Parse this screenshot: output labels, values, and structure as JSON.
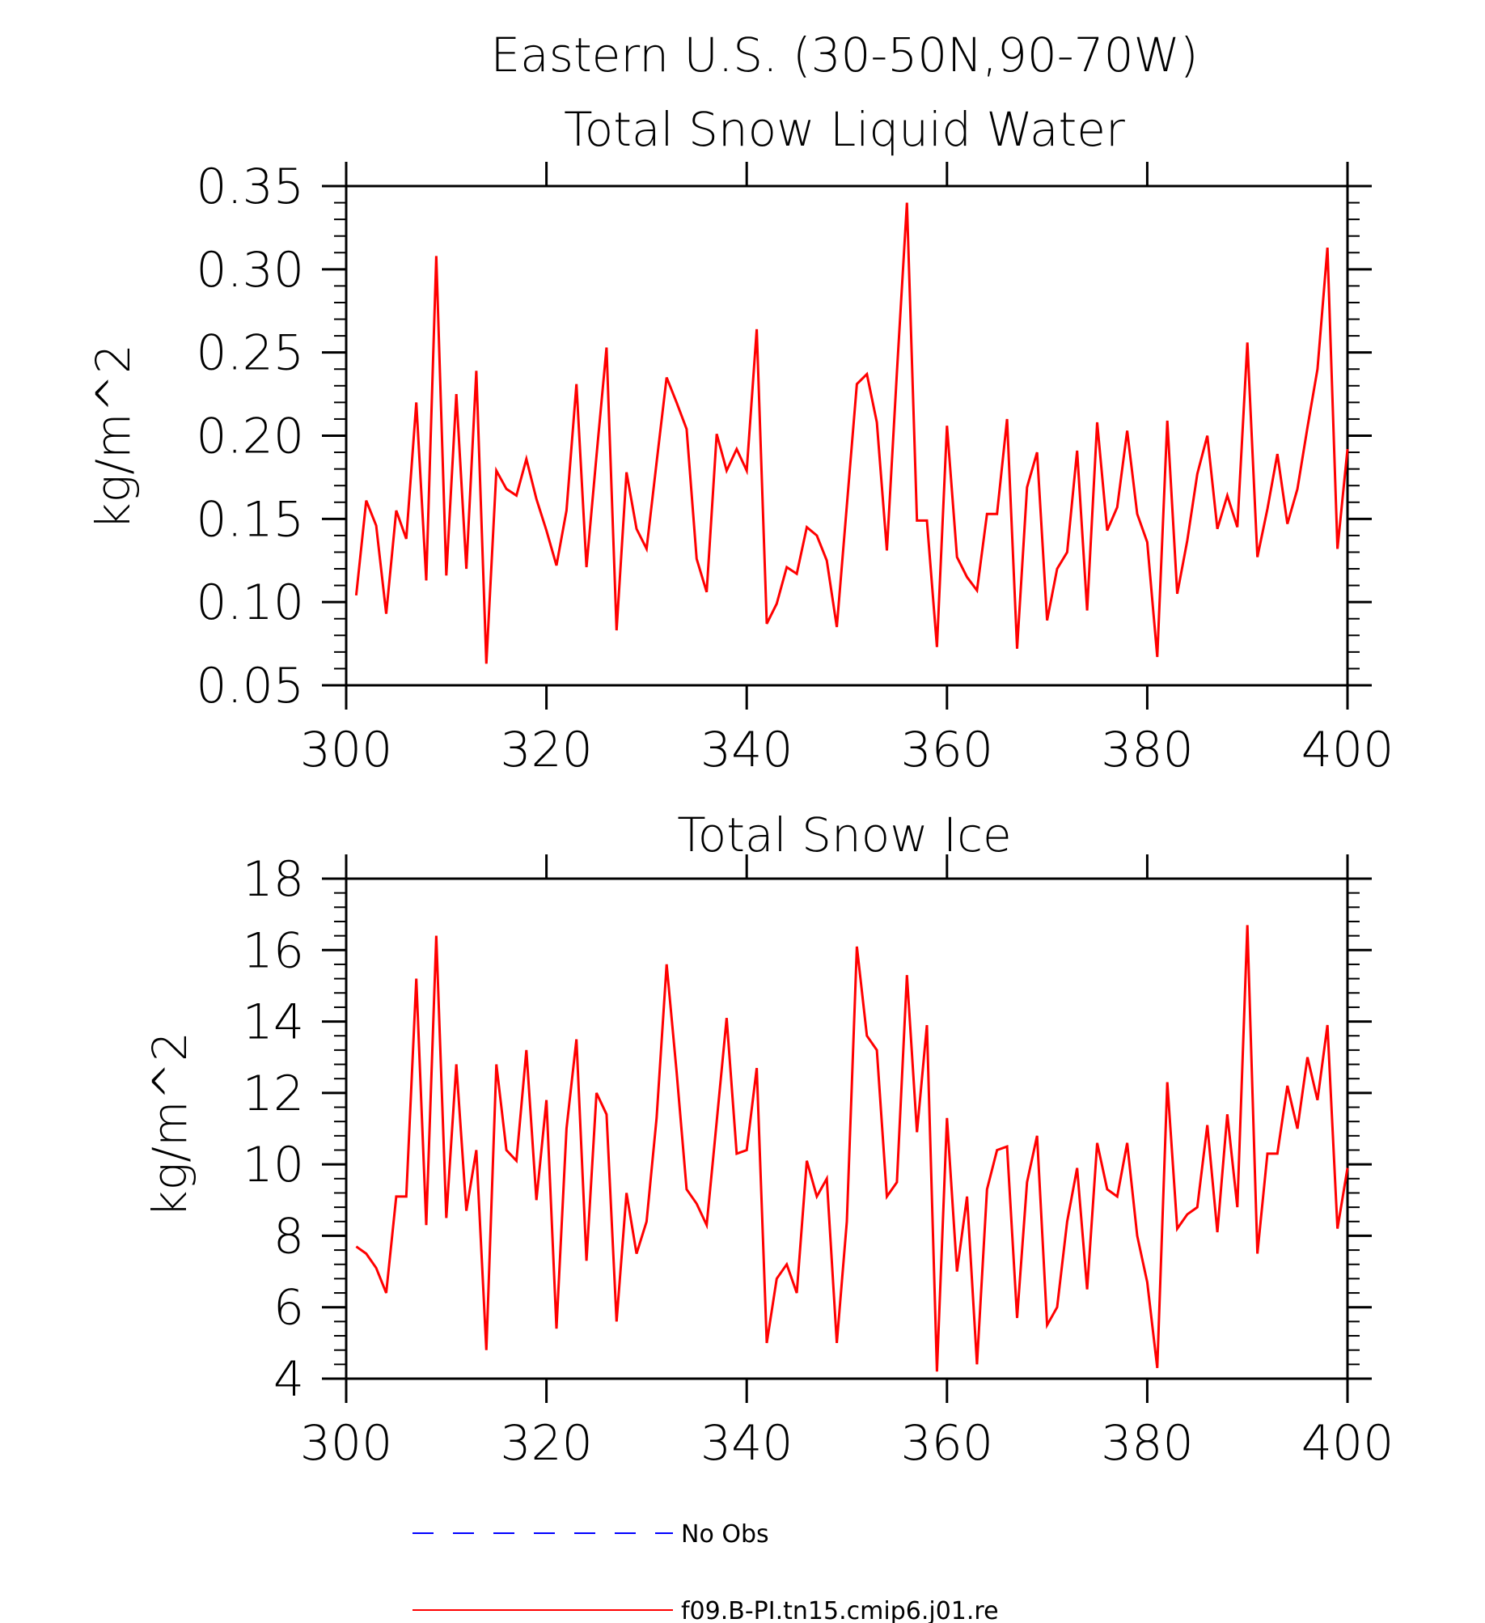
{
  "figure_title": "Eastern U.S. (30-50N,90-70W)",
  "colors": {
    "model_line": "#ff0000",
    "obs_line": "#0000ff",
    "axis": "#000000"
  },
  "legend": {
    "entries": [
      {
        "label": "No Obs",
        "style": "dashed",
        "color": "#0000ff"
      },
      {
        "label": "f09.B-PI.tn15.cmip6.j01.re",
        "style": "solid",
        "color": "#ff0000"
      }
    ]
  },
  "chart_data": [
    {
      "type": "line",
      "title": "Total Snow Liquid Water",
      "ylabel": "kg/m^2",
      "xlabel": "",
      "xlim": [
        300,
        400
      ],
      "ylim": [
        0.05,
        0.35
      ],
      "xticks": [
        "300",
        "320",
        "340",
        "360",
        "380",
        "400"
      ],
      "yticks": [
        "0.05",
        "0.10",
        "0.15",
        "0.20",
        "0.25",
        "0.30",
        "0.35"
      ],
      "x_start": 301,
      "x_step": 1,
      "series": [
        {
          "name": "f09.B-PI.tn15.cmip6.j01.re",
          "values": [
            0.104,
            0.161,
            0.146,
            0.093,
            0.155,
            0.138,
            0.22,
            0.113,
            0.308,
            0.116,
            0.225,
            0.12,
            0.239,
            0.063,
            0.179,
            0.168,
            0.164,
            0.186,
            0.162,
            0.143,
            0.122,
            0.155,
            0.231,
            0.121,
            0.188,
            0.253,
            0.083,
            0.178,
            0.144,
            0.132,
            0.184,
            0.235,
            0.22,
            0.204,
            0.126,
            0.106,
            0.201,
            0.179,
            0.192,
            0.179,
            0.264,
            0.087,
            0.099,
            0.121,
            0.117,
            0.145,
            0.14,
            0.125,
            0.085,
            0.158,
            0.231,
            0.237,
            0.208,
            0.131,
            0.238,
            0.34,
            0.149,
            0.149,
            0.073,
            0.206,
            0.127,
            0.115,
            0.107,
            0.153,
            0.153,
            0.21,
            0.072,
            0.169,
            0.19,
            0.089,
            0.12,
            0.13,
            0.191,
            0.095,
            0.208,
            0.143,
            0.157,
            0.203,
            0.153,
            0.136,
            0.067,
            0.209,
            0.105,
            0.137,
            0.177,
            0.2,
            0.144,
            0.164,
            0.145,
            0.256,
            0.127,
            0.156,
            0.189,
            0.147,
            0.168,
            0.205,
            0.24,
            0.313,
            0.132,
            0.192
          ]
        }
      ]
    },
    {
      "type": "line",
      "title": "Total Snow Ice",
      "ylabel": "kg/m^2",
      "xlabel": "",
      "xlim": [
        300,
        400
      ],
      "ylim": [
        4,
        18
      ],
      "xticks": [
        "300",
        "320",
        "340",
        "360",
        "380",
        "400"
      ],
      "yticks": [
        "4",
        "6",
        "8",
        "10",
        "12",
        "14",
        "16",
        "18"
      ],
      "x_start": 301,
      "x_step": 1,
      "series": [
        {
          "name": "f09.B-PI.tn15.cmip6.j01.re",
          "values": [
            7.7,
            7.5,
            7.1,
            6.4,
            9.1,
            9.1,
            15.2,
            8.3,
            16.4,
            8.5,
            12.8,
            8.7,
            10.4,
            4.8,
            12.8,
            10.4,
            10.1,
            13.2,
            9.0,
            11.8,
            5.4,
            11.0,
            13.5,
            7.3,
            12.0,
            11.4,
            5.6,
            9.2,
            7.5,
            8.4,
            11.3,
            15.6,
            12.6,
            9.3,
            8.9,
            8.3,
            11.2,
            14.1,
            10.3,
            10.4,
            12.7,
            5.0,
            6.8,
            7.2,
            6.4,
            10.1,
            9.1,
            9.6,
            5.0,
            8.4,
            16.1,
            13.6,
            13.2,
            9.1,
            9.5,
            15.3,
            10.9,
            13.9,
            4.2,
            11.3,
            7.0,
            9.1,
            4.4,
            9.3,
            10.4,
            10.5,
            5.7,
            9.5,
            10.8,
            5.5,
            6.0,
            8.4,
            9.9,
            6.5,
            10.6,
            9.3,
            9.1,
            10.6,
            8.0,
            6.7,
            4.3,
            12.3,
            8.2,
            8.6,
            8.8,
            11.1,
            8.1,
            11.4,
            8.8,
            16.7,
            7.5,
            10.3,
            10.3,
            12.2,
            11.0,
            13.0,
            11.8,
            13.9,
            8.2,
            9.9
          ]
        }
      ]
    }
  ]
}
